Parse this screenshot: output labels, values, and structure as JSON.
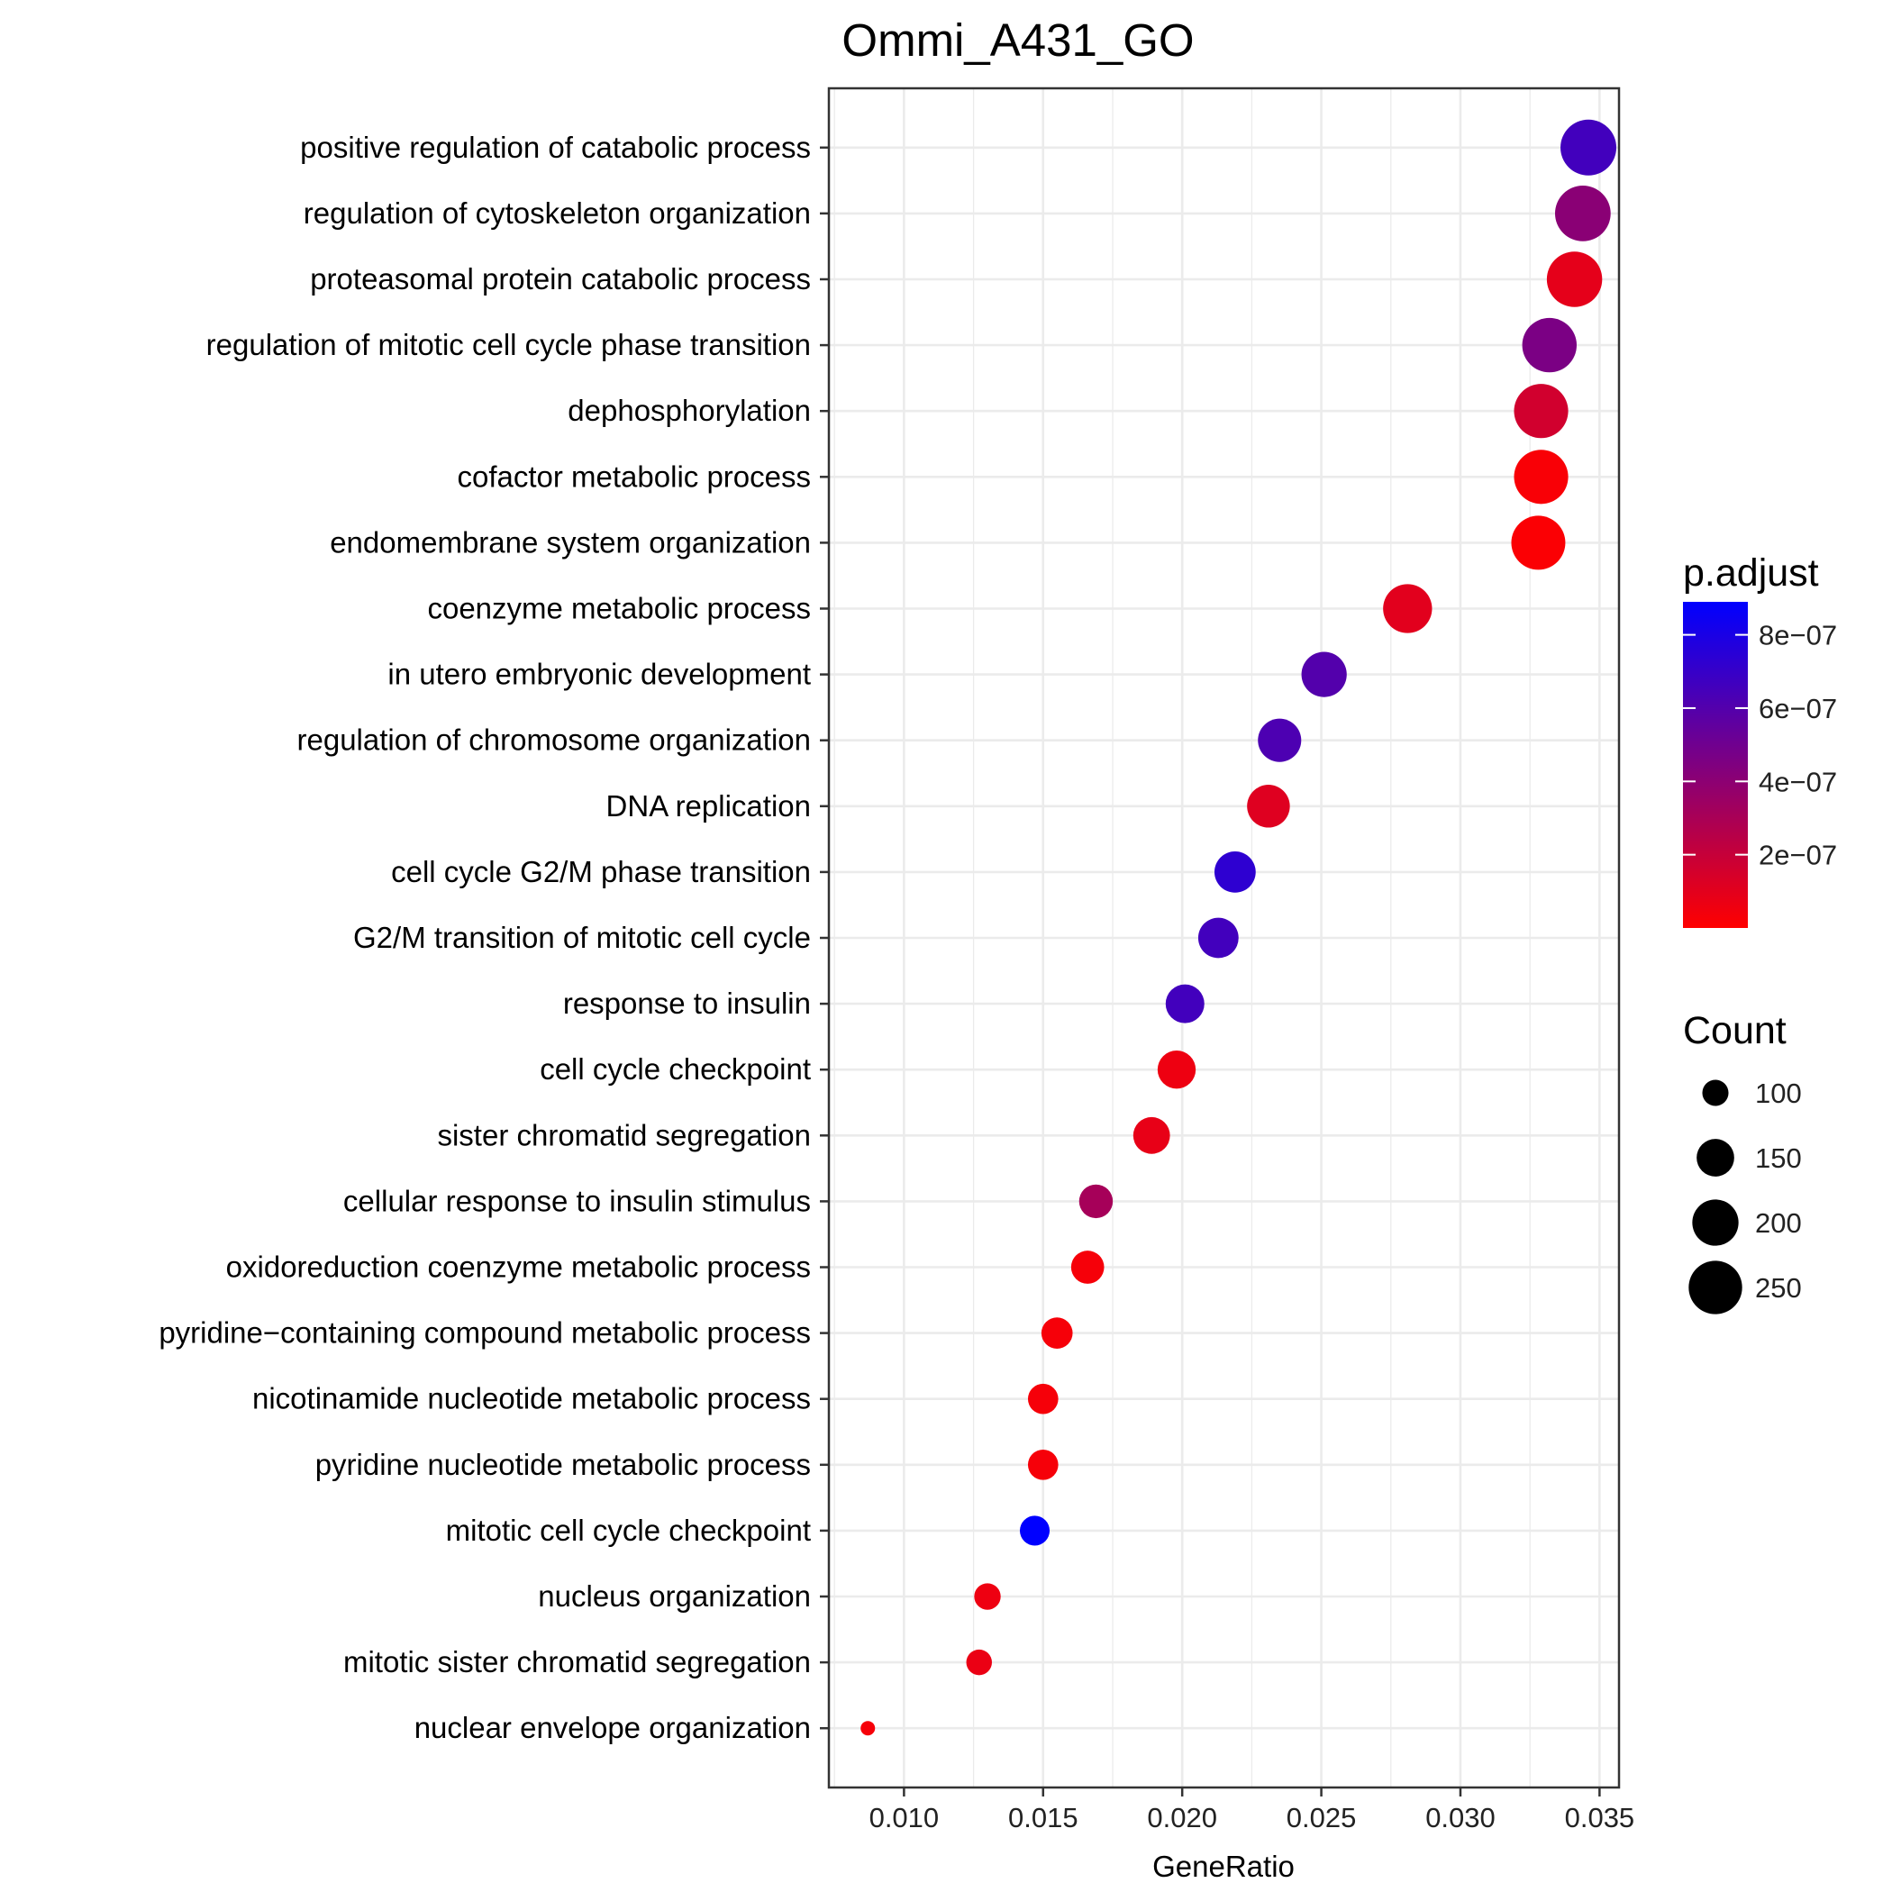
{
  "chart_data": {
    "type": "scatter",
    "title": "Ommi_A431_GO",
    "xlabel": "GeneRatio",
    "ylabel": "",
    "xlim": [
      0.0073,
      0.0357
    ],
    "x_ticks": [
      "0.010",
      "0.015",
      "0.020",
      "0.025",
      "0.030",
      "0.035"
    ],
    "grid": true,
    "categories": [
      "positive regulation of catabolic process",
      "regulation of cytoskeleton organization",
      "proteasomal protein catabolic process",
      "regulation of mitotic cell cycle phase transition",
      "dephosphorylation",
      "cofactor metabolic process",
      "endomembrane system organization",
      "coenzyme metabolic process",
      "in utero embryonic development",
      "regulation of chromosome organization",
      "DNA replication",
      "cell cycle G2/M phase transition",
      "G2/M transition of mitotic cell cycle",
      "response to insulin",
      "cell cycle checkpoint",
      "sister chromatid segregation",
      "cellular response to insulin stimulus",
      "oxidoreduction coenzyme metabolic process",
      "pyridine−containing compound metabolic process",
      "nicotinamide nucleotide metabolic process",
      "pyridine nucleotide metabolic process",
      "mitotic cell cycle checkpoint",
      "nucleus organization",
      "mitotic sister chromatid segregation",
      "nuclear envelope organization"
    ],
    "x": [
      0.0346,
      0.0344,
      0.0341,
      0.0332,
      0.0329,
      0.0329,
      0.0328,
      0.0281,
      0.0251,
      0.0235,
      0.0231,
      0.0219,
      0.0213,
      0.0201,
      0.0198,
      0.0189,
      0.0169,
      0.0166,
      0.0155,
      0.015,
      0.015,
      0.0147,
      0.013,
      0.0127,
      0.0087
    ],
    "count": [
      268,
      266,
      264,
      257,
      255,
      255,
      254,
      218,
      194,
      182,
      179,
      170,
      165,
      156,
      153,
      146,
      131,
      128,
      120,
      116,
      116,
      114,
      101,
      98,
      67
    ],
    "p_adjust": [
      6.6e-07,
      4.1e-07,
      9e-08,
      4.6e-07,
      1.6e-07,
      2e-08,
      1.5e-08,
      1e-07,
      6e-07,
      6.2e-07,
      1.1e-07,
      7.3e-07,
      6.6e-07,
      6.6e-07,
      6e-08,
      8e-08,
      3.1e-07,
      3e-08,
      3e-08,
      3e-08,
      3e-08,
      8.9e-07,
      6e-08,
      7e-08,
      3e-08
    ],
    "color_legend": {
      "title": "p.adjust",
      "labels": [
        "8e−07",
        "6e−07",
        "4e−07",
        "2e−07"
      ],
      "breaks": [
        8e-07,
        6e-07,
        4e-07,
        2e-07
      ],
      "range": [
        0.0,
        8.9e-07
      ],
      "low_color": "#ff0000",
      "high_color": "#0000ff"
    },
    "size_legend": {
      "title": "Count",
      "labels": [
        "100",
        "150",
        "200",
        "250"
      ],
      "breaks": [
        100,
        150,
        200,
        250
      ]
    },
    "legend_position": "right"
  }
}
